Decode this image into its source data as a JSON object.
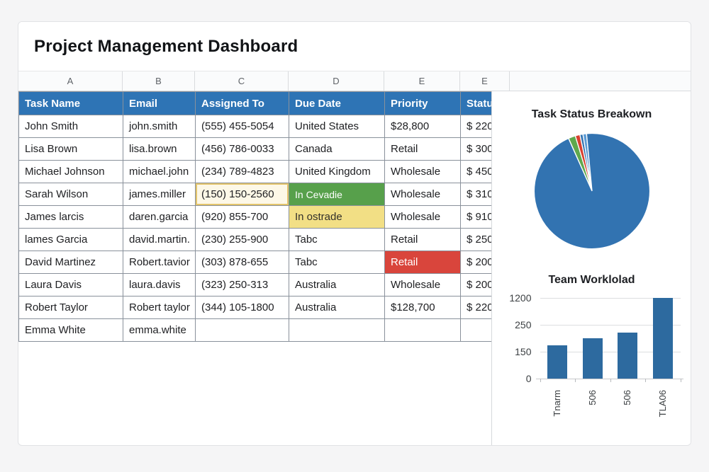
{
  "title": "Project Management Dashboard",
  "column_letters": [
    "A",
    "B",
    "C",
    "D",
    "E",
    "E"
  ],
  "table": {
    "headers": [
      "Task Name",
      "Email",
      "Assigned To",
      "Due Date",
      "Priority",
      "Status"
    ],
    "rows": [
      [
        "John Smith",
        "john.smith",
        "(555) 455-5054",
        "United States",
        "$28,800",
        "$ 220"
      ],
      [
        "Lisa Brown",
        "lisa.brown",
        "(456) 786-0033",
        "Canada",
        "Retail",
        "$ 300"
      ],
      [
        "Michael Johnson",
        "michael.john",
        "(234) 789-4823",
        "United Kingdom",
        "Wholesale",
        "$ 450"
      ],
      [
        "Sarah Wilson",
        "james.miller",
        "(150) 150-2560",
        "In Cevadie",
        "Wholesale",
        "$ 310"
      ],
      [
        "James larcis",
        "daren.garcia",
        "(920) 855-700",
        "In ostrade",
        "Wholesale",
        "$ 910"
      ],
      [
        "lames Garcia",
        "david.martin.",
        "(230) 255-900",
        "Tabc",
        "Retail",
        "$ 250"
      ],
      [
        "David Martinez",
        "Robert.tavior",
        "(303) 878-655",
        "Tabc",
        "Retail",
        "$ 200"
      ],
      [
        "Laura Davis",
        "laura.davis",
        "(323) 250-313",
        "Australia",
        "Wholesale",
        "$ 200"
      ],
      [
        "Robert Taylor",
        "Robert taylor",
        "(344) 105-1800",
        "Australia",
        "$128,700",
        "$ 220"
      ],
      [
        "Emma White",
        "emma.white",
        "",
        "",
        "",
        ""
      ]
    ],
    "highlights": {
      "3,2": "selected",
      "3,3": "green",
      "4,3": "yellow",
      "6,4": "red"
    }
  },
  "colors": {
    "header_bg": "#2e74b5",
    "green_cell": "#57a04b",
    "yellow_cell": "#f2df85",
    "red_cell": "#d9453c",
    "selected_border": "#e3c46b",
    "bar_blue": "#2d6a9f",
    "pie_blue": "#3273b1"
  },
  "chart_data": [
    {
      "type": "pie",
      "title": "Task Status Breakown",
      "start_angle_deg": -24,
      "legend": false,
      "slices": [
        {
          "name": "green-sliver",
          "pct": 2.0,
          "color": "#5fa84d"
        },
        {
          "name": "red-sliver",
          "pct": 1.3,
          "color": "#d8402f"
        },
        {
          "name": "blue-sliver",
          "pct": 0.85,
          "color": "#3273b1"
        },
        {
          "name": "lightblue-sliver",
          "pct": 1.0,
          "color": "#5b9bd5"
        },
        {
          "name": "main",
          "pct": 94.85,
          "color": "#3273b1"
        }
      ]
    },
    {
      "type": "bar",
      "title": "Team Worklolad",
      "categories": [
        "Tnarm",
        "506",
        "506",
        "TLA06"
      ],
      "values": [
        175,
        200,
        220,
        1190
      ],
      "yticks": [
        0,
        150,
        250,
        1200
      ],
      "bar_color": "#2d6a9f",
      "grid": true,
      "xlabel": "",
      "ylabel": ""
    }
  ]
}
